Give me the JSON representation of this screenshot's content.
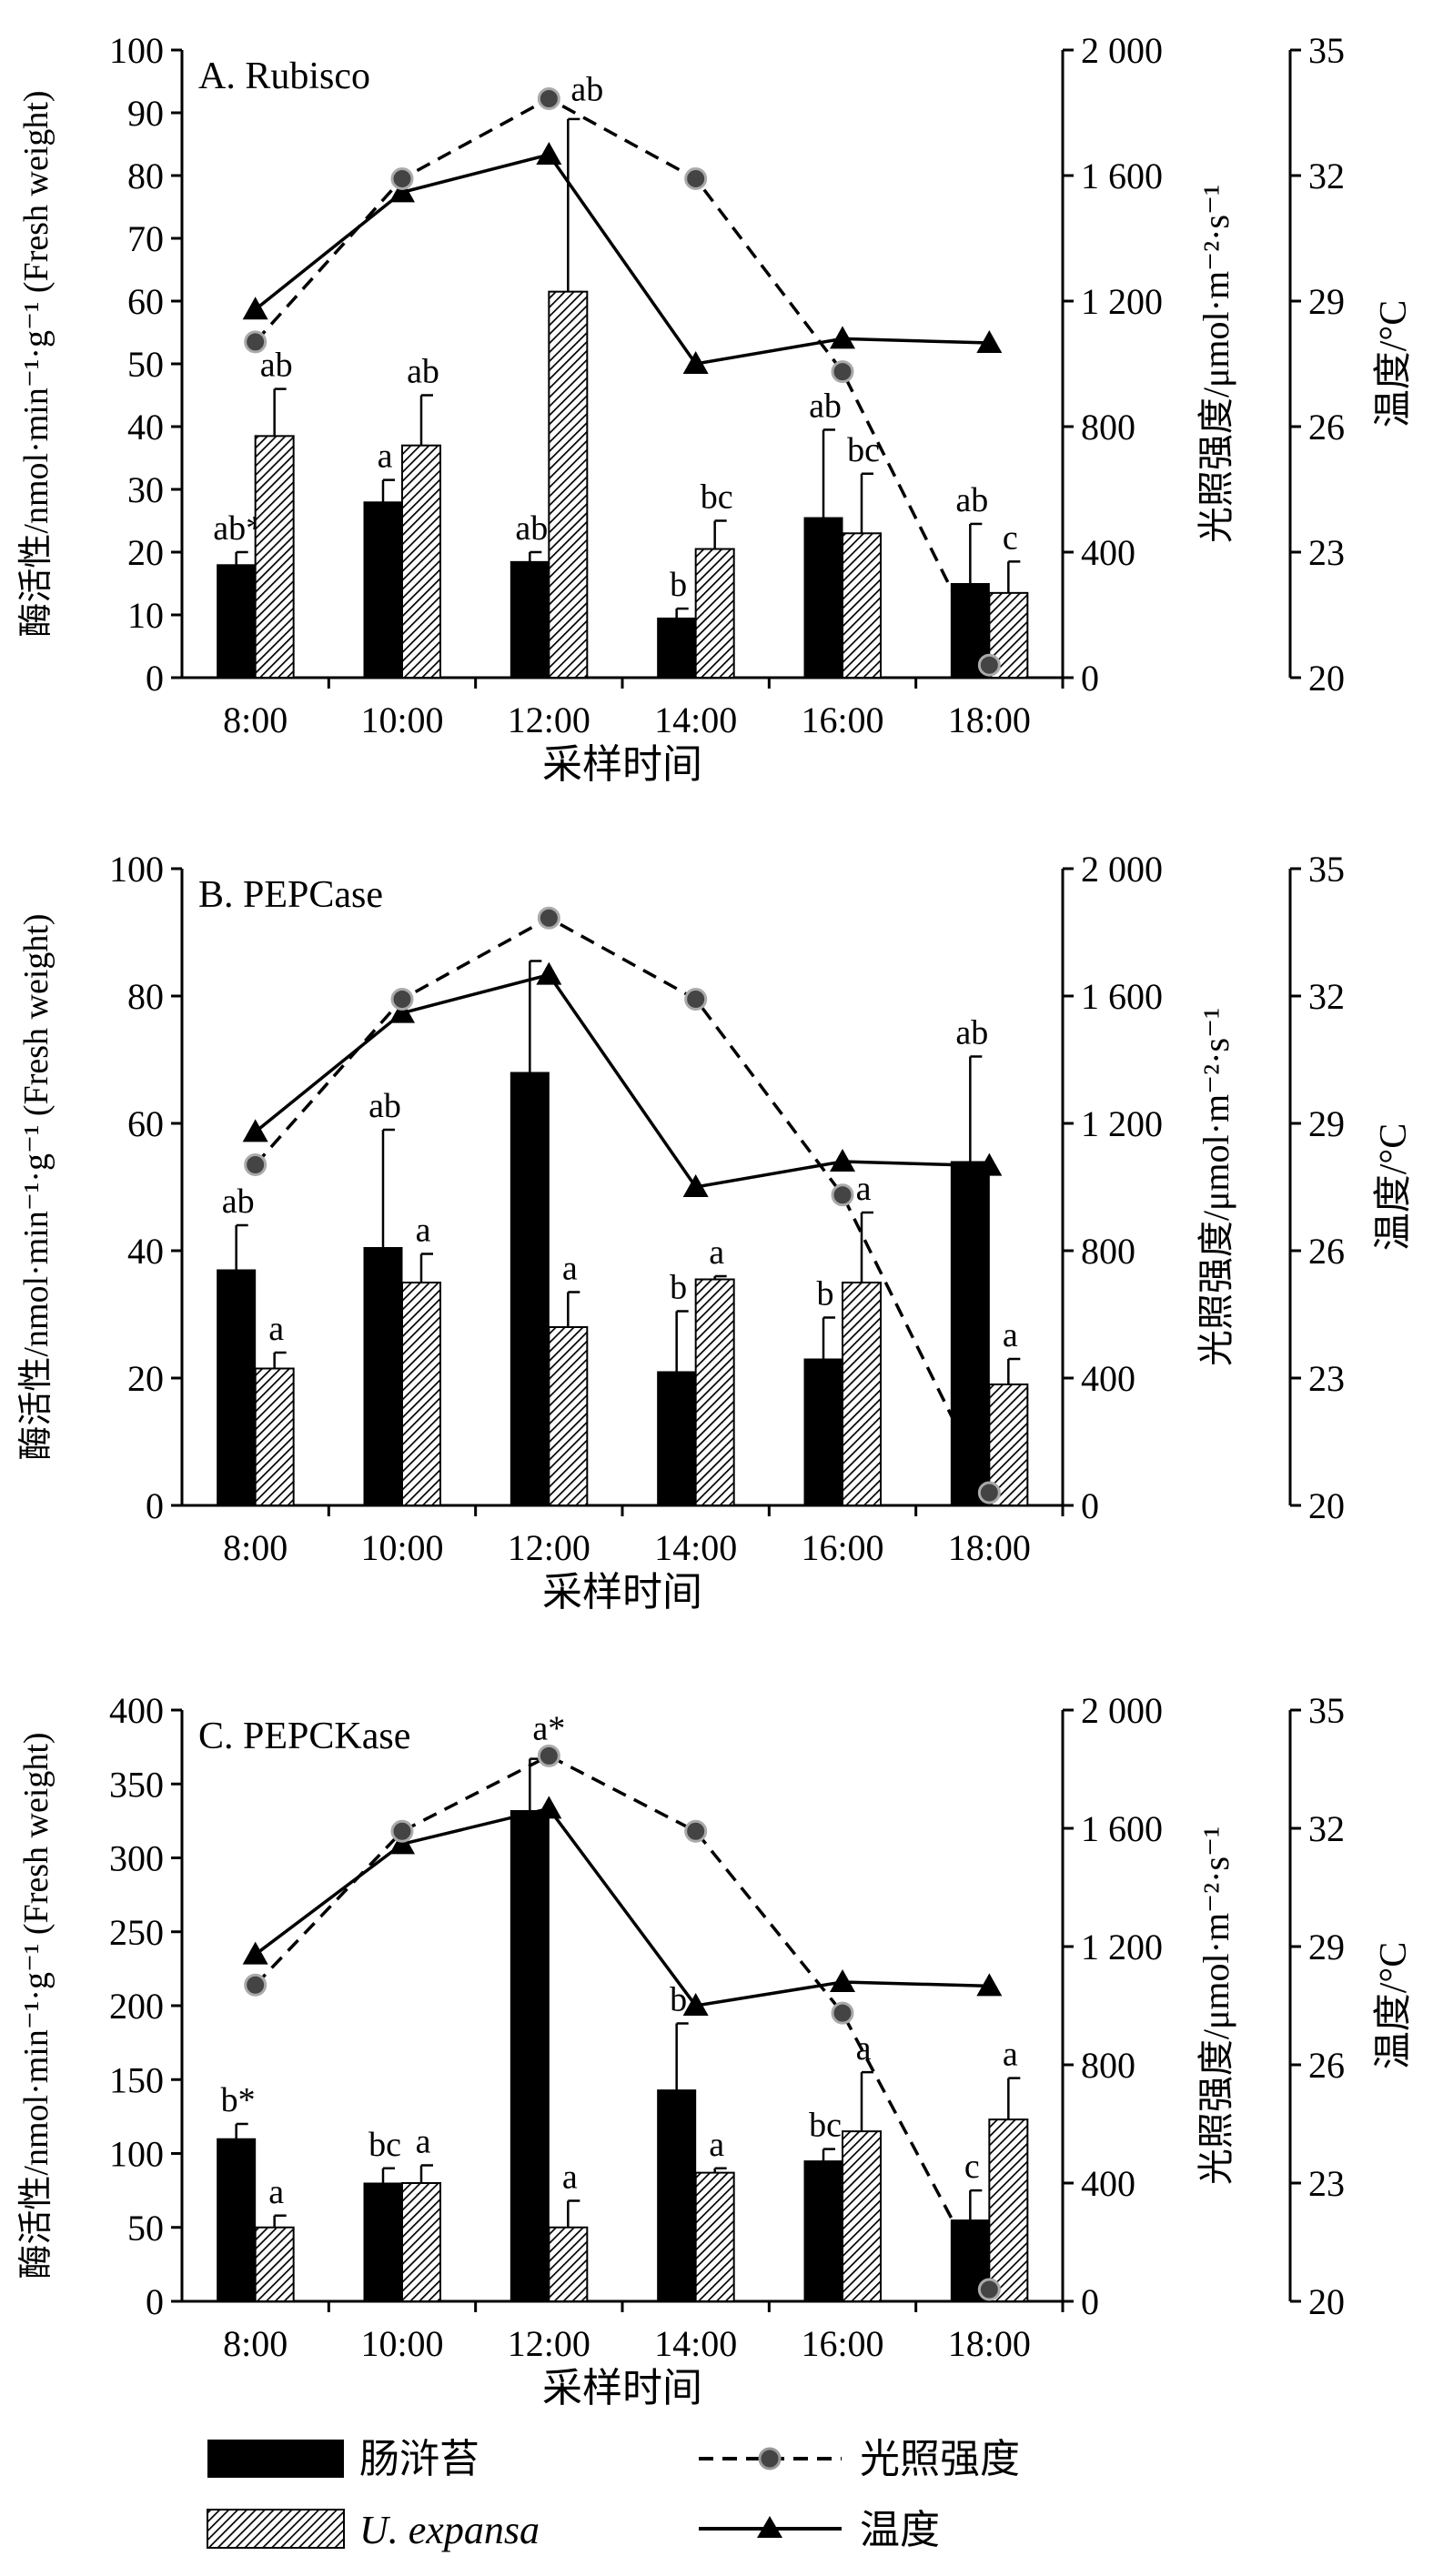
{
  "figure": {
    "x_axis_label": "采样时间",
    "left_axis_label": "酶活性/nmol·min⁻¹·g⁻¹ (Fresh weight)",
    "light_axis_label": "光照强度/μmol·m⁻²·s⁻¹",
    "temp_axis_label": "温度/°C",
    "light_ticks": [
      "0",
      "400",
      "800",
      "1 200",
      "1 600",
      "2 000"
    ],
    "temp_ticks": [
      "20",
      "23",
      "26",
      "29",
      "32",
      "35"
    ]
  },
  "legend": {
    "chang": "肠浒苔",
    "uexpansa": "U. expansa",
    "light": "光照强度",
    "temp": "温度"
  },
  "colors": {
    "chang_fill": "#000000",
    "ux_hatch": "#000000",
    "line": "#000000"
  },
  "chart_data": [
    {
      "type": "bar",
      "title": "A. Rubisco",
      "categories": [
        "8:00",
        "10:00",
        "12:00",
        "14:00",
        "16:00",
        "18:00"
      ],
      "ylim": [
        0,
        100
      ],
      "yticks": [
        "0",
        "10",
        "20",
        "30",
        "40",
        "50",
        "60",
        "70",
        "80",
        "90",
        "100"
      ],
      "series": [
        {
          "name": "肠浒苔",
          "values": [
            18,
            28,
            18.5,
            9.5,
            25.5,
            15
          ],
          "errors": [
            2,
            3.5,
            1.5,
            1.5,
            14,
            9.5
          ],
          "labels": [
            "ab*",
            "a",
            "ab",
            "b",
            "ab",
            "ab"
          ]
        },
        {
          "name": "U. expansa",
          "values": [
            38.5,
            37,
            61.5,
            20.5,
            23,
            13.5
          ],
          "errors": [
            7.5,
            8,
            27.5,
            4.5,
            9.5,
            5
          ],
          "labels": [
            "ab",
            "ab",
            "",
            "bc",
            "bc",
            "c"
          ]
        }
      ],
      "light": [
        1070,
        1590,
        1845,
        1590,
        975,
        40
      ],
      "temperature": [
        28.8,
        31.6,
        32.5,
        27.5,
        28.1,
        28
      ],
      "line_labels": [
        "",
        "",
        "ab",
        "",
        "",
        ""
      ]
    },
    {
      "type": "bar",
      "title": "B. PEPCase",
      "categories": [
        "8:00",
        "10:00",
        "12:00",
        "14:00",
        "16:00",
        "18:00"
      ],
      "ylim": [
        0,
        100
      ],
      "yticks": [
        "0",
        "20",
        "40",
        "60",
        "80",
        "100"
      ],
      "series": [
        {
          "name": "肠浒苔",
          "values": [
            37,
            40.5,
            68,
            21,
            23,
            54
          ],
          "errors": [
            7,
            18.5,
            17.5,
            9.5,
            6.5,
            16.5
          ],
          "labels": [
            "ab",
            "ab",
            "",
            "b",
            "b",
            "ab"
          ]
        },
        {
          "name": "U. expansa",
          "values": [
            21.5,
            35,
            28,
            35.5,
            35,
            19
          ],
          "errors": [
            2.5,
            4.5,
            5.5,
            0.5,
            11,
            4
          ],
          "labels": [
            "a",
            "a",
            "a",
            "a",
            "a",
            "a"
          ]
        }
      ],
      "light": [
        1070,
        1590,
        1845,
        1590,
        975,
        40
      ],
      "temperature": [
        28.8,
        31.6,
        32.5,
        27.5,
        28.1,
        28
      ],
      "line_labels": [
        "",
        "",
        "",
        "",
        "",
        ""
      ]
    },
    {
      "type": "bar",
      "title": "C. PEPCKase",
      "categories": [
        "8:00",
        "10:00",
        "12:00",
        "14:00",
        "16:00",
        "18:00"
      ],
      "ylim": [
        0,
        400
      ],
      "yticks": [
        "0",
        "50",
        "100",
        "150",
        "200",
        "250",
        "300",
        "350",
        "400"
      ],
      "series": [
        {
          "name": "肠浒苔",
          "values": [
            110,
            80,
            332,
            143,
            95,
            55
          ],
          "errors": [
            10,
            10,
            35,
            45,
            8,
            20
          ],
          "labels": [
            "b*",
            "bc",
            "",
            "b",
            "bc",
            "c"
          ]
        },
        {
          "name": "U. expansa",
          "values": [
            50,
            80,
            50,
            87,
            115,
            123
          ],
          "errors": [
            8,
            12,
            18,
            3,
            40,
            28
          ],
          "labels": [
            "a",
            "a",
            "a",
            "a",
            "a",
            "a"
          ]
        }
      ],
      "light": [
        1070,
        1590,
        1845,
        1590,
        975,
        40
      ],
      "temperature": [
        28.8,
        31.6,
        32.5,
        27.5,
        28.1,
        28
      ],
      "line_labels": [
        "",
        "",
        "a*",
        "",
        "",
        ""
      ]
    }
  ]
}
